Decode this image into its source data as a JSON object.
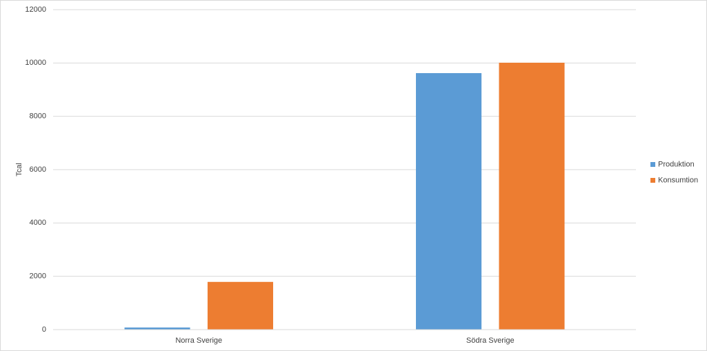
{
  "chart_data": {
    "type": "bar",
    "ylabel": "Tcal",
    "categories": [
      "Norra Sverige",
      "Södra Sverige"
    ],
    "series": [
      {
        "name": "Produktion",
        "color": "#5b9bd5",
        "values": [
          80,
          9620
        ]
      },
      {
        "name": "Konsumtion",
        "color": "#ed7d31",
        "values": [
          1790,
          10010
        ]
      }
    ],
    "ylim": [
      0,
      12000
    ],
    "yticks": [
      0,
      2000,
      4000,
      6000,
      8000,
      10000,
      12000
    ],
    "grid": true,
    "legend": "right"
  }
}
